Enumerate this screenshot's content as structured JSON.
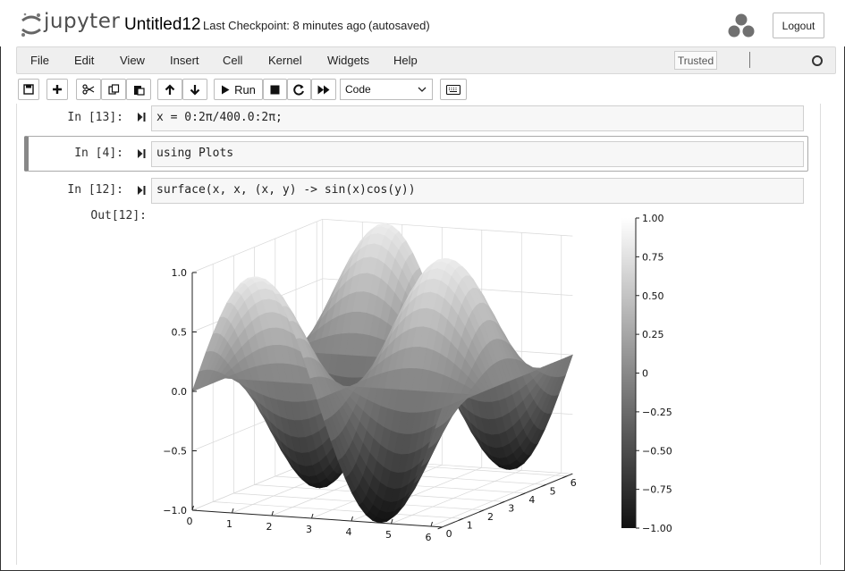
{
  "header": {
    "logo_text": "jupyter",
    "notebook_name": "Untitled12",
    "checkpoint": "Last Checkpoint: 8 minutes ago",
    "autosave": "(autosaved)",
    "logout_label": "Logout"
  },
  "menubar": {
    "items": [
      "File",
      "Edit",
      "View",
      "Insert",
      "Cell",
      "Kernel",
      "Widgets",
      "Help"
    ],
    "trusted_label": "Trusted"
  },
  "toolbar": {
    "run_label": "Run",
    "cell_type": "Code"
  },
  "cells": [
    {
      "prompt": "In [13]:",
      "code": "x = 0:2π/400.0:2π;"
    },
    {
      "prompt": "In [4]:",
      "code": "using Plots"
    },
    {
      "prompt": "In [12]:",
      "code": "surface(x, x, (x, y) -> sin(x)cos(y))"
    }
  ],
  "output": {
    "prompt": "Out[12]:"
  },
  "chart_data": {
    "type": "surface",
    "function": "sin(x)cos(y)",
    "x_range": [
      0,
      6.283
    ],
    "y_range": [
      0,
      6.283
    ],
    "zlim": [
      -1.0,
      1.0
    ],
    "x_ticks": [
      "0",
      "1",
      "2",
      "3",
      "4",
      "5",
      "6"
    ],
    "y_ticks": [
      "0",
      "1",
      "2",
      "3",
      "4",
      "5",
      "6"
    ],
    "z_ticks": [
      "−1.0",
      "−0.5",
      "0.0",
      "0.5",
      "1.0"
    ],
    "colorbar_ticks": [
      "1.00",
      "0.75",
      "0.50",
      "0.25",
      "0",
      "−0.25",
      "−0.50",
      "−0.75",
      "−1.00"
    ],
    "colorbar_range": [
      -1.0,
      1.0
    ],
    "colormap": "grayscale",
    "grid": true,
    "legend": "colorbar-right"
  }
}
